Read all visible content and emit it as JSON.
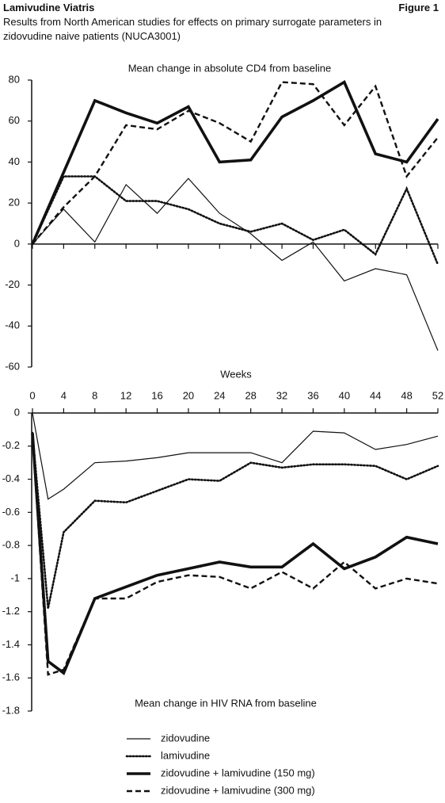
{
  "header": {
    "title": "Lamivudine Viatris",
    "figure": "Figure 1",
    "subtitle": "Results from North American studies for effects on primary surrogate parameters in zidovudine naive patients (NUCA3001)"
  },
  "chart_data": [
    {
      "type": "line",
      "title": "Mean change in absolute CD4 from baseline",
      "x": [
        0,
        4,
        8,
        12,
        16,
        20,
        24,
        28,
        32,
        36,
        40,
        44,
        48,
        52
      ],
      "xlim": [
        0,
        52
      ],
      "ylim": [
        -60,
        80
      ],
      "yticks": [
        -60,
        -40,
        -20,
        0,
        20,
        40,
        60,
        80
      ],
      "series": [
        {
          "style": "thin",
          "color": "#111111",
          "values": [
            0,
            17,
            1,
            29,
            15,
            32,
            15,
            5,
            -8,
            1,
            -18,
            -12,
            -15,
            -52
          ]
        },
        {
          "style": "dotted",
          "color": "#111111",
          "values": [
            0,
            33,
            33,
            21,
            21,
            17,
            10,
            6,
            10,
            2,
            7,
            -5,
            27,
            -10
          ]
        },
        {
          "style": "thick",
          "color": "#111111",
          "values": [
            0,
            35,
            70,
            64,
            59,
            67,
            40,
            41,
            62,
            70,
            79,
            44,
            40,
            61
          ]
        },
        {
          "style": "dashed",
          "color": "#111111",
          "values": [
            0,
            18,
            33,
            58,
            56,
            65,
            59,
            50,
            79,
            78,
            58,
            77,
            33,
            52
          ]
        }
      ]
    },
    {
      "type": "line",
      "title": "Mean change in HIV RNA from baseline",
      "xlabel": "Weeks",
      "x": [
        0,
        2,
        4,
        8,
        12,
        16,
        20,
        24,
        28,
        32,
        36,
        40,
        44,
        48,
        52
      ],
      "xlim": [
        0,
        52
      ],
      "xticks": [
        0,
        4,
        8,
        12,
        16,
        20,
        24,
        28,
        32,
        36,
        40,
        44,
        48,
        52
      ],
      "ylim": [
        -1.8,
        0
      ],
      "yticks": [
        -1.8,
        -1.6,
        -1.4,
        -1.2,
        -1,
        -0.8,
        -0.6,
        -0.4,
        -0.2,
        0
      ],
      "series": [
        {
          "name": "zidovudine",
          "style": "thin",
          "color": "#111111",
          "values": [
            0,
            -0.52,
            -0.46,
            -0.3,
            -0.29,
            -0.27,
            -0.24,
            -0.24,
            -0.24,
            -0.3,
            -0.11,
            -0.12,
            -0.22,
            -0.19,
            -0.14
          ]
        },
        {
          "name": "lamivudine",
          "style": "dotted",
          "color": "#111111",
          "values": [
            -0.12,
            -1.18,
            -0.72,
            -0.53,
            -0.54,
            -0.47,
            -0.4,
            -0.41,
            -0.3,
            -0.33,
            -0.31,
            -0.31,
            -0.32,
            -0.4,
            -0.32
          ]
        },
        {
          "name": "zidovudine + lamivudine (150 mg)",
          "style": "thick",
          "color": "#111111",
          "values": [
            -0.12,
            -1.5,
            -1.57,
            -1.12,
            -1.05,
            -0.98,
            -0.94,
            -0.9,
            -0.93,
            -0.93,
            -0.79,
            -0.94,
            -0.87,
            -0.75,
            -0.79
          ]
        },
        {
          "name": "zidovudine + lamivudine (300 mg)",
          "style": "dashed",
          "color": "#111111",
          "values": [
            -0.14,
            -1.58,
            -1.55,
            -1.12,
            -1.12,
            -1.02,
            -0.98,
            -0.99,
            -1.06,
            -0.96,
            -1.06,
            -0.9,
            -1.06,
            -1,
            -1.03
          ]
        }
      ]
    }
  ]
}
